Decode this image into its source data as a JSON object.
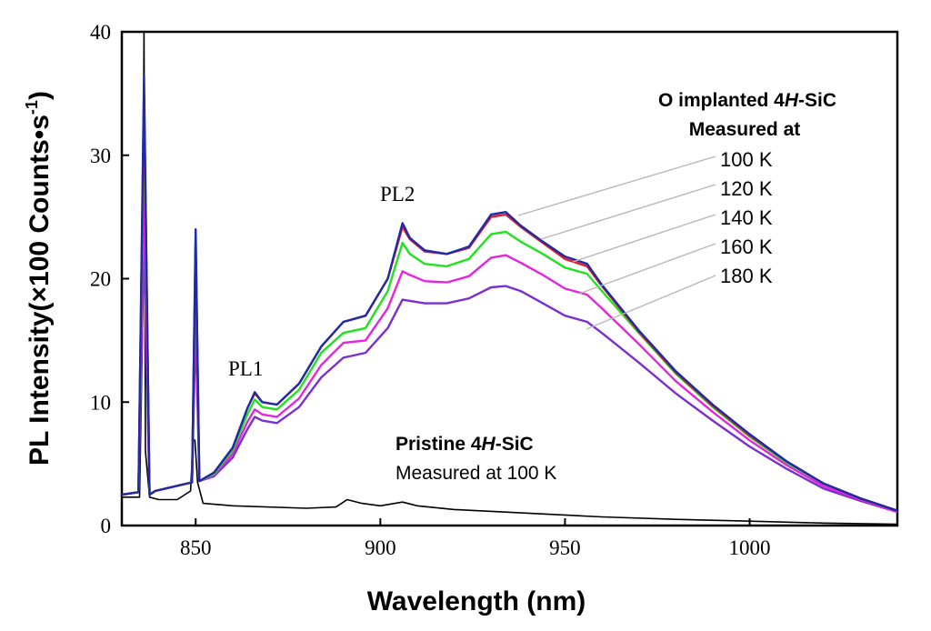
{
  "chart_data": {
    "type": "line",
    "xlabel": "Wavelength (nm)",
    "ylabel": "PL Intensity(×100 Counts•s⁻¹)",
    "ylabel_parts": {
      "main": "PL Intensity(×100 Counts•s",
      "sup": "-1",
      "end": ")"
    },
    "xlim": [
      830,
      1040
    ],
    "ylim": [
      0,
      40
    ],
    "xticks": [
      850,
      900,
      950,
      1000
    ],
    "yticks": [
      0,
      10,
      20,
      30,
      40
    ],
    "legend": {
      "title_prefix": "O implanted 4",
      "title_italic": "H",
      "title_suffix": "-SiC",
      "subtitle": "Measured at",
      "entries": [
        "100 K",
        "120 K",
        "140 K",
        "160 K",
        "180 K"
      ]
    },
    "pristine_label": {
      "line1_prefix": "Pristine 4",
      "line1_italic": "H",
      "line1_suffix": "-SiC",
      "line2": "Measured at 100 K"
    },
    "annotations": [
      {
        "text": "PL1",
        "x": 865,
        "y": 11.5
      },
      {
        "text": "PL2",
        "x": 905,
        "y": 25.5
      }
    ],
    "series": [
      {
        "name": "100 K",
        "color": "#1c2ca8",
        "x": [
          830,
          834.5,
          836,
          837.5,
          839,
          849,
          850,
          851,
          855,
          860,
          864,
          866,
          868,
          872,
          878,
          884,
          890,
          896,
          902,
          906,
          908,
          912,
          918,
          924,
          930,
          934,
          938,
          944,
          950,
          956,
          960,
          970,
          980,
          990,
          1000,
          1010,
          1020,
          1030,
          1040
        ],
        "y": [
          2.5,
          2.7,
          36.5,
          2.5,
          2.8,
          3.5,
          24,
          3.6,
          4.3,
          6.3,
          9.5,
          10.8,
          10,
          9.8,
          11.5,
          14.5,
          16.5,
          17,
          20,
          24.5,
          23.3,
          22.3,
          22,
          22.6,
          25.2,
          25.4,
          24.3,
          23,
          21.8,
          21.2,
          19.5,
          15.8,
          12.5,
          9.8,
          7.4,
          5.2,
          3.4,
          2.2,
          1.2
        ]
      },
      {
        "name": "120 K",
        "color": "#e11b2a",
        "x": [
          830,
          834.5,
          836,
          837.5,
          839,
          849,
          850,
          851,
          855,
          860,
          864,
          866,
          868,
          872,
          878,
          884,
          890,
          896,
          902,
          906,
          908,
          912,
          918,
          924,
          930,
          934,
          938,
          944,
          950,
          956,
          960,
          970,
          980,
          990,
          1000,
          1010,
          1020,
          1030,
          1040
        ],
        "y": [
          2.5,
          2.7,
          35,
          2.5,
          2.8,
          3.5,
          23,
          3.6,
          4.3,
          6.3,
          9.5,
          10.7,
          10,
          9.8,
          11.5,
          14.5,
          16.5,
          17,
          20,
          24.2,
          23.2,
          22.2,
          22,
          22.5,
          25,
          25.2,
          24.2,
          22.9,
          21.6,
          21,
          19.4,
          15.7,
          12.4,
          9.7,
          7.3,
          5.2,
          3.4,
          2.2,
          1.2
        ]
      },
      {
        "name": "140 K",
        "color": "#22e11f",
        "x": [
          830,
          834.5,
          836,
          837.5,
          839,
          849,
          850,
          851,
          855,
          860,
          864,
          866,
          868,
          872,
          878,
          884,
          890,
          896,
          902,
          906,
          908,
          912,
          918,
          924,
          930,
          934,
          938,
          944,
          950,
          956,
          960,
          970,
          980,
          990,
          1000,
          1010,
          1020,
          1030,
          1040
        ],
        "y": [
          2.5,
          2.7,
          33.7,
          2.5,
          2.8,
          3.5,
          22.6,
          3.6,
          4.2,
          6.1,
          9,
          10.2,
          9.6,
          9.4,
          11,
          14,
          15.6,
          16,
          19,
          22.9,
          22,
          21.2,
          21,
          21.6,
          23.6,
          23.8,
          23,
          22,
          20.9,
          20.4,
          19,
          15.6,
          12.3,
          9.6,
          7.2,
          5.1,
          3.4,
          2.2,
          1.2
        ]
      },
      {
        "name": "160 K",
        "color": "#e624de",
        "x": [
          830,
          834.5,
          836,
          837.5,
          839,
          849,
          850,
          851,
          855,
          860,
          864,
          866,
          868,
          872,
          878,
          884,
          890,
          896,
          902,
          906,
          908,
          912,
          918,
          924,
          930,
          934,
          938,
          944,
          950,
          956,
          960,
          970,
          980,
          990,
          1000,
          1010,
          1020,
          1030,
          1040
        ],
        "y": [
          2.5,
          2.7,
          27.5,
          2.5,
          2.8,
          3.5,
          19.2,
          3.6,
          4.1,
          5.8,
          8.4,
          9.4,
          9,
          8.8,
          10.3,
          13,
          14.8,
          15,
          17.6,
          20.6,
          20.3,
          19.8,
          19.7,
          20.2,
          21.7,
          21.9,
          21.3,
          20.3,
          19.2,
          18.7,
          17.6,
          14.7,
          11.7,
          9.2,
          6.9,
          4.9,
          3.2,
          2.1,
          1.1
        ]
      },
      {
        "name": "180 K",
        "color": "#7a2fd0",
        "x": [
          830,
          834.5,
          836,
          837.5,
          839,
          849,
          850,
          851,
          855,
          860,
          864,
          866,
          868,
          872,
          878,
          884,
          890,
          896,
          902,
          906,
          908,
          912,
          918,
          924,
          930,
          934,
          938,
          944,
          950,
          956,
          960,
          970,
          980,
          990,
          1000,
          1010,
          1020,
          1030,
          1040
        ],
        "y": [
          2.5,
          2.7,
          22.8,
          2.5,
          2.8,
          3.5,
          16.2,
          3.6,
          4,
          5.5,
          7.8,
          8.8,
          8.5,
          8.3,
          9.6,
          12,
          13.6,
          14,
          16,
          18.3,
          18.2,
          18,
          18,
          18.4,
          19.3,
          19.4,
          19,
          18,
          17,
          16.5,
          15.6,
          13.2,
          10.7,
          8.5,
          6.4,
          4.6,
          3,
          2,
          1.1
        ]
      },
      {
        "name": "Pristine 4H-SiC 100 K",
        "color": "#000000",
        "x": [
          830,
          834.8,
          835.2,
          835.6,
          836,
          836.4,
          837.5,
          840,
          845,
          848.6,
          849.3,
          849.8,
          850.5,
          852,
          860,
          880,
          888,
          891,
          895,
          900,
          906,
          910,
          920,
          940,
          960,
          980,
          1000,
          1020,
          1040
        ],
        "y": [
          2.3,
          2.3,
          9,
          16,
          40,
          6,
          2.3,
          2.1,
          2.1,
          2.8,
          7,
          6.9,
          3.5,
          1.8,
          1.6,
          1.4,
          1.5,
          2.1,
          1.8,
          1.6,
          1.9,
          1.6,
          1.3,
          1,
          0.7,
          0.5,
          0.35,
          0.2,
          0.1
        ]
      }
    ]
  }
}
